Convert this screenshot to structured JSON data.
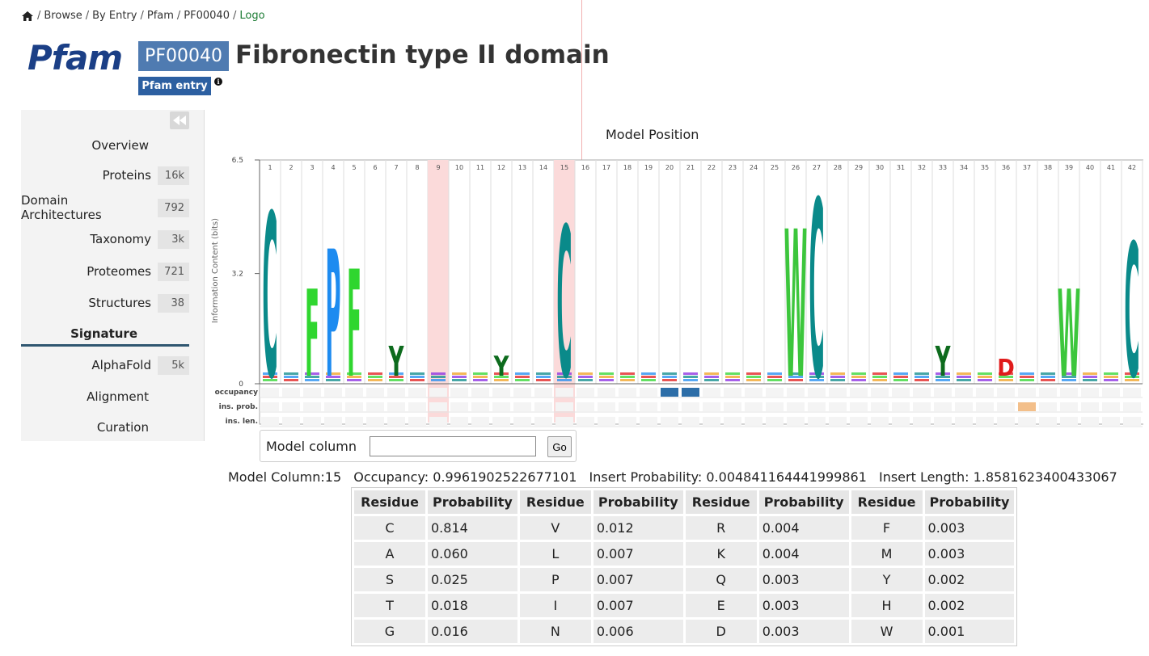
{
  "breadcrumb": {
    "items": [
      "Browse",
      "By Entry",
      "Pfam",
      "PF00040"
    ],
    "current": "Logo",
    "separator": "/"
  },
  "header": {
    "logo_text": "Pfam",
    "accession": "PF00040",
    "badge": "Pfam entry",
    "title": "Fibronectin type II domain"
  },
  "sidebar": {
    "items": [
      {
        "label": "Overview",
        "count": ""
      },
      {
        "label": "Proteins",
        "count": "16k"
      },
      {
        "label": "Domain Architectures",
        "count": "792"
      },
      {
        "label": "Taxonomy",
        "count": "3k"
      },
      {
        "label": "Proteomes",
        "count": "721"
      },
      {
        "label": "Structures",
        "count": "38"
      },
      {
        "label": "Signature",
        "count": "",
        "active": true
      },
      {
        "label": "AlphaFold",
        "count": "5k"
      },
      {
        "label": "Alignment",
        "count": ""
      },
      {
        "label": "Curation",
        "count": ""
      }
    ]
  },
  "logo": {
    "heading": "Model Position",
    "ylabel": "Information Content (bits)",
    "yticks": [
      "6.5",
      "3.2",
      "0"
    ],
    "row_labels": [
      "occupancy",
      "ins. prob.",
      "ins. len."
    ],
    "positions": [
      "1",
      "2",
      "3",
      "4",
      "5",
      "6",
      "7",
      "8",
      "9",
      "10",
      "11",
      "12",
      "13",
      "14",
      "15",
      "16",
      "17",
      "18",
      "19",
      "20",
      "21",
      "22",
      "23",
      "24",
      "25",
      "26",
      "27",
      "28",
      "29",
      "30",
      "31",
      "32",
      "33",
      "34",
      "35",
      "36",
      "37",
      "38",
      "39",
      "40",
      "41",
      "42"
    ],
    "highlighted": [
      "9",
      "15"
    ],
    "letters": [
      {
        "pos": "1",
        "char": "C",
        "color": "#0a8a8a",
        "bits": 4.9
      },
      {
        "pos": "3",
        "char": "F",
        "color": "#2fd62f",
        "bits": 2.6
      },
      {
        "pos": "4",
        "char": "P",
        "color": "#1d8bf0",
        "bits": 3.8
      },
      {
        "pos": "5",
        "char": "F",
        "color": "#2fd62f",
        "bits": 3.2
      },
      {
        "pos": "7",
        "char": "Y",
        "color": "#0d6b1d",
        "bits": 0.9
      },
      {
        "pos": "12",
        "char": "Y",
        "color": "#0d6b1d",
        "bits": 0.6
      },
      {
        "pos": "15",
        "char": "C",
        "color": "#0a8a8a",
        "bits": 4.5
      },
      {
        "pos": "26",
        "char": "W",
        "color": "#3cc63c",
        "bits": 4.4
      },
      {
        "pos": "27",
        "char": "C",
        "color": "#0a8a8a",
        "bits": 5.3
      },
      {
        "pos": "33",
        "char": "Y",
        "color": "#0d6b1d",
        "bits": 0.9
      },
      {
        "pos": "36",
        "char": "D",
        "color": "#e01b1b",
        "bits": 0.5
      },
      {
        "pos": "39",
        "char": "W",
        "color": "#3cc63c",
        "bits": 2.6
      },
      {
        "pos": "42",
        "char": "C",
        "color": "#0a8a8a",
        "bits": 4.0
      }
    ]
  },
  "model_column": {
    "label": "Model column",
    "value": "",
    "go_label": "Go"
  },
  "stats": {
    "model_column": "Model Column:15",
    "occupancy": "Occupancy: 0.9961902522677101",
    "insert_probability": "Insert Probability: 0.004841164441999861",
    "insert_length": "Insert Length: 1.8581623400433067"
  },
  "table": {
    "headers": [
      "Residue",
      "Probability",
      "Residue",
      "Probability",
      "Residue",
      "Probability",
      "Residue",
      "Probability"
    ],
    "rows": [
      [
        "C",
        "0.814",
        "V",
        "0.012",
        "R",
        "0.004",
        "F",
        "0.003"
      ],
      [
        "A",
        "0.060",
        "L",
        "0.007",
        "K",
        "0.004",
        "M",
        "0.003"
      ],
      [
        "S",
        "0.025",
        "P",
        "0.007",
        "Q",
        "0.003",
        "Y",
        "0.002"
      ],
      [
        "T",
        "0.018",
        "I",
        "0.007",
        "E",
        "0.003",
        "H",
        "0.002"
      ],
      [
        "G",
        "0.016",
        "N",
        "0.006",
        "D",
        "0.003",
        "W",
        "0.001"
      ]
    ]
  }
}
